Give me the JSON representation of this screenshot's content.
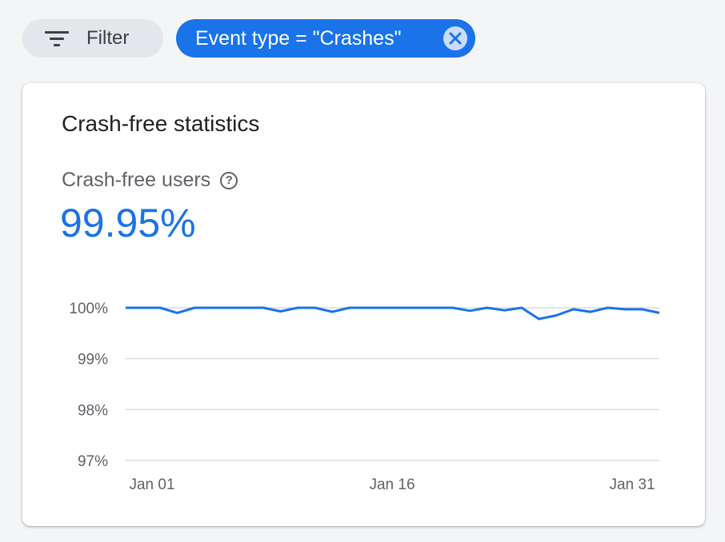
{
  "filter_bar": {
    "filter_label": "Filter",
    "chip_label": "Event type = \"Crashes\""
  },
  "card": {
    "title": "Crash-free statistics",
    "metric_label": "Crash-free users",
    "metric_value": "99.95%"
  },
  "colors": {
    "accent": "#1a73e8",
    "grid": "#dadce0",
    "text_secondary": "#5f6368"
  },
  "chart_data": {
    "type": "line",
    "title": "",
    "xlabel": "",
    "ylabel": "",
    "x_ticks": [
      "Jan 01",
      "Jan 16",
      "Jan 31"
    ],
    "y_ticks": [
      "100%",
      "99%",
      "98%",
      "97%"
    ],
    "ylim": [
      97,
      100
    ],
    "grid": true,
    "series": [
      {
        "values": [
          100.0,
          100.0,
          100.0,
          99.9,
          100.0,
          100.0,
          100.0,
          100.0,
          100.0,
          99.93,
          100.0,
          100.0,
          99.92,
          100.0,
          100.0,
          100.0,
          100.0,
          100.0,
          100.0,
          100.0,
          99.94,
          100.0,
          99.95,
          100.0,
          99.78,
          99.85,
          99.97,
          99.92,
          100.0,
          99.97,
          99.97,
          99.9
        ]
      }
    ]
  }
}
